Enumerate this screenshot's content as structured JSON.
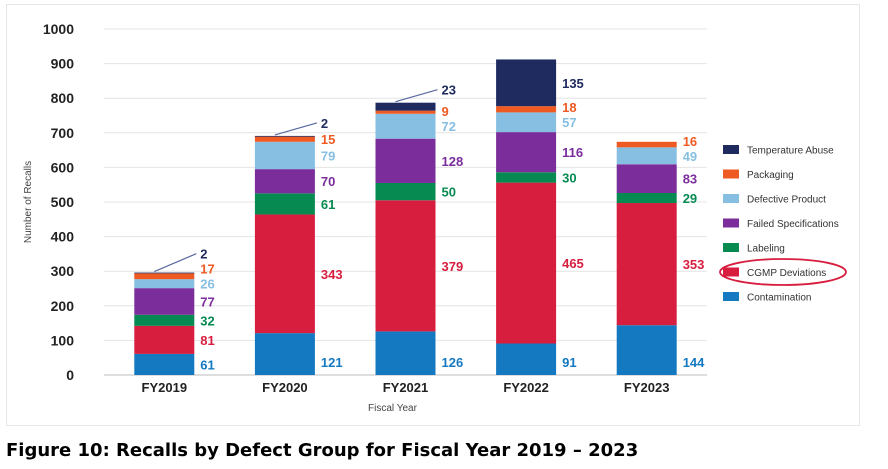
{
  "chart_data": {
    "type": "bar",
    "stacked": true,
    "title": "",
    "xlabel": "Fiscal Year",
    "ylabel": "Number of Recalls",
    "ylim": [
      0,
      1000
    ],
    "yticks": [
      0,
      100,
      200,
      300,
      400,
      500,
      600,
      700,
      800,
      900,
      1000
    ],
    "grid": true,
    "legend_position": "right",
    "categories": [
      "FY2019",
      "FY2020",
      "FY2021",
      "FY2022",
      "FY2023"
    ],
    "series": [
      {
        "name": "Contamination",
        "color": "#1479c0",
        "values": [
          61,
          121,
          126,
          91,
          144
        ]
      },
      {
        "name": "CGMP Deviations",
        "color": "#d81e3f",
        "values": [
          81,
          343,
          379,
          465,
          353
        ]
      },
      {
        "name": "Labeling",
        "color": "#078a52",
        "values": [
          32,
          61,
          50,
          30,
          29
        ]
      },
      {
        "name": "Failed Specifications",
        "color": "#7b2d9b",
        "values": [
          77,
          70,
          128,
          116,
          83
        ]
      },
      {
        "name": "Defective Product",
        "color": "#86bfe2",
        "values": [
          26,
          79,
          72,
          57,
          49
        ]
      },
      {
        "name": "Packaging",
        "color": "#ef5a23",
        "values": [
          17,
          15,
          9,
          18,
          16
        ]
      },
      {
        "name": "Temperature Abuse",
        "color": "#1f2a5e",
        "values": [
          2,
          2,
          23,
          135,
          0
        ]
      }
    ],
    "legend_order": [
      "Temperature Abuse",
      "Packaging",
      "Defective Product",
      "Failed Specifications",
      "Labeling",
      "CGMP Deviations",
      "Contamination"
    ],
    "highlighted_legend_entry": "CGMP Deviations",
    "highlight_color": "#d81e3f"
  },
  "caption": "Figure 10: Recalls by Defect Group for Fiscal Year 2019 – 2023"
}
